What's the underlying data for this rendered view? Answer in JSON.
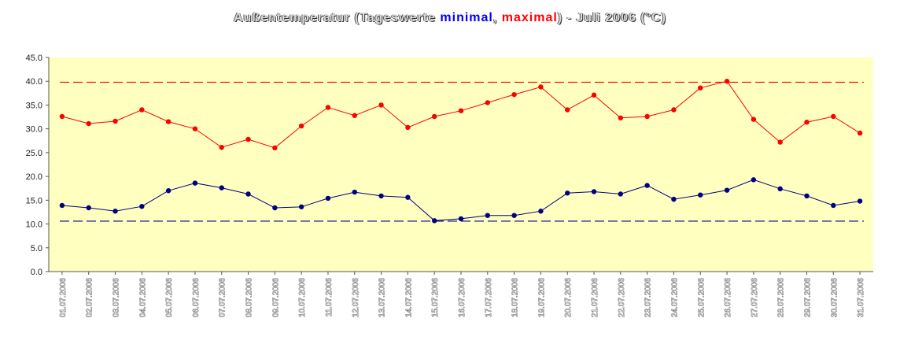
{
  "title": {
    "prefix": "Außentemperatur (Tageswerte ",
    "min_word": "minimal",
    "sep": ", ",
    "max_word": "maximal",
    "suffix": ") - Juli 2006 (°C)"
  },
  "colors": {
    "plot_background": "#ffffc0",
    "max_series": "#ff0000",
    "min_series": "#000080"
  },
  "chart_data": {
    "type": "line",
    "title": "Außentemperatur (Tageswerte minimal, maximal) - Juli 2006 (°C)",
    "xlabel": "",
    "ylabel": "",
    "ylim": [
      0,
      45
    ],
    "yticks": [
      "0.0",
      "5.0",
      "10.0",
      "15.0",
      "20.0",
      "25.0",
      "30.0",
      "35.0",
      "40.0",
      "45.0"
    ],
    "grid": false,
    "categories": [
      "01.07.2006",
      "02.07.2006",
      "03.07.2006",
      "04.07.2006",
      "05.07.2006",
      "06.07.2006",
      "07.07.2006",
      "08.07.2006",
      "09.07.2006",
      "10.07.2006",
      "11.07.2006",
      "12.07.2006",
      "13.07.2006",
      "14.07.2006",
      "15.07.2006",
      "16.07.2006",
      "17.07.2006",
      "18.07.2006",
      "19.07.2006",
      "20.07.2006",
      "21.07.2006",
      "22.07.2006",
      "23.07.2006",
      "24.07.2006",
      "25.07.2006",
      "26.07.2006",
      "27.07.2006",
      "28.07.2006",
      "29.07.2006",
      "30.07.2006",
      "31.07.2006"
    ],
    "series": [
      {
        "name": "maximal",
        "color": "#ff0000",
        "values": [
          32.6,
          31.1,
          31.6,
          34.0,
          31.5,
          30.0,
          26.1,
          27.8,
          26.0,
          30.6,
          34.5,
          32.8,
          35.0,
          30.3,
          32.6,
          33.8,
          35.5,
          37.2,
          38.8,
          34.0,
          37.1,
          32.3,
          32.6,
          34.0,
          38.6,
          40.0,
          32.0,
          27.2,
          31.4,
          32.6,
          29.1
        ]
      },
      {
        "name": "minimal",
        "color": "#000080",
        "values": [
          13.9,
          13.4,
          12.7,
          13.7,
          17.0,
          18.6,
          17.6,
          16.3,
          13.4,
          13.6,
          15.4,
          16.7,
          15.9,
          15.6,
          10.7,
          11.1,
          11.8,
          11.8,
          12.7,
          16.5,
          16.8,
          16.3,
          18.1,
          15.2,
          16.1,
          17.1,
          19.3,
          17.4,
          15.9,
          13.9,
          14.8
        ]
      }
    ],
    "reference_lines": [
      {
        "series": "maximal",
        "value": 39.8,
        "style": "dashed",
        "color": "#ff0000"
      },
      {
        "series": "minimal",
        "value": 10.6,
        "style": "dashed",
        "color": "#000080"
      }
    ]
  }
}
